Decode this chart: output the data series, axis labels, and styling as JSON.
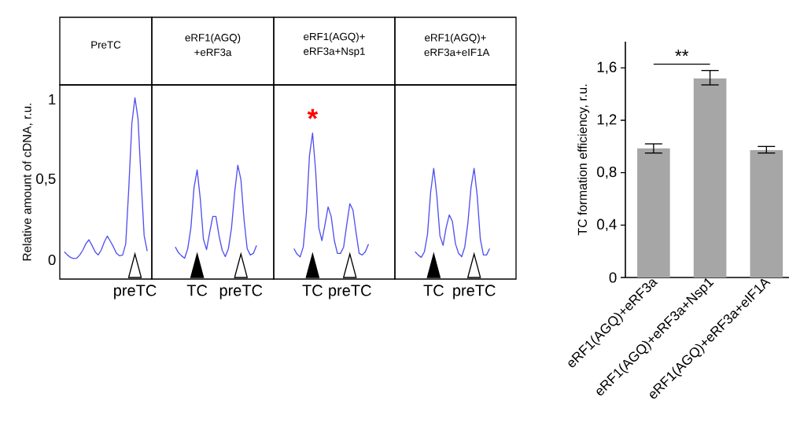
{
  "chart_data": [
    {
      "type": "line",
      "title": "PreTC",
      "ylabel": "Relative amount of cDNA, r.u.",
      "color": "#5050f0",
      "ylim": [
        -0.12,
        1.09
      ],
      "yticks": [
        {
          "value": 0,
          "label": "0"
        },
        {
          "value": 0.5,
          "label": "0,5"
        },
        {
          "value": 1,
          "label": "1"
        }
      ],
      "categories": [
        null,
        null,
        null,
        null,
        null,
        null,
        null,
        null,
        null,
        null,
        null,
        null,
        null,
        null,
        null,
        null,
        null,
        null,
        null,
        null,
        null,
        null,
        null,
        null,
        "preTC",
        null,
        null,
        null,
        null,
        null
      ],
      "values": [
        null,
        0.05,
        0.03,
        0.015,
        0.008,
        0.01,
        0.03,
        0.06,
        0.1,
        0.125,
        0.09,
        0.05,
        0.03,
        0.06,
        0.11,
        0.148,
        0.115,
        0.08,
        0.04,
        0.025,
        0.03,
        0.1,
        0.45,
        0.85,
        1.01,
        0.88,
        0.5,
        0.15,
        0.055,
        null
      ]
    },
    {
      "type": "line",
      "title": "eRF1(AGQ) +eRF3a",
      "color": "#5050f0",
      "ylim": [
        -0.12,
        1.09
      ],
      "tick_labels": "x",
      "categories": [
        null,
        null,
        null,
        null,
        null,
        null,
        null,
        null,
        null,
        null,
        null,
        null,
        null,
        null,
        "TC",
        null,
        null,
        null,
        null,
        null,
        null,
        null,
        null,
        null,
        null,
        null,
        null,
        null,
        "preTC",
        null,
        null,
        null,
        null,
        null,
        null,
        null,
        null,
        null,
        null
      ],
      "values": [
        null,
        null,
        null,
        null,
        null,
        null,
        null,
        0.08,
        0.045,
        0.025,
        0.01,
        0.07,
        0.2,
        0.45,
        0.56,
        0.38,
        0.13,
        0.063,
        0.17,
        0.27,
        0.27,
        0.15,
        0.06,
        0.02,
        0.07,
        0.2,
        0.42,
        0.59,
        0.5,
        0.25,
        0.07,
        0.03,
        0.04,
        0.09,
        null,
        null,
        null,
        null,
        null
      ]
    },
    {
      "type": "line",
      "title": "eRF1(AGQ)+ eRF3a+Nsp1",
      "color": "#5050f0",
      "ylim": [
        -0.12,
        1.09
      ],
      "tick_labels": "x",
      "annotations": [
        "*"
      ],
      "categories": [
        null,
        null,
        null,
        null,
        null,
        null,
        null,
        null,
        null,
        null,
        null,
        null,
        "TC",
        null,
        null,
        null,
        null,
        null,
        null,
        null,
        null,
        null,
        null,
        null,
        "preTC",
        null,
        null,
        null,
        null,
        null,
        null,
        null,
        null,
        null,
        null,
        null,
        null,
        null,
        null
      ],
      "values": [
        null,
        null,
        null,
        null,
        null,
        null,
        0.07,
        0.035,
        0.018,
        0.08,
        0.29,
        0.65,
        0.79,
        0.55,
        0.2,
        0.12,
        0.22,
        0.33,
        0.27,
        0.12,
        0.04,
        0.04,
        0.08,
        0.22,
        0.35,
        0.31,
        0.17,
        0.04,
        0.03,
        0.05,
        0.098,
        null,
        null,
        null,
        null,
        null,
        null,
        null,
        null
      ]
    },
    {
      "type": "line",
      "title": "eRF1(AGQ)+ eRF3a+eIF1A",
      "color": "#5050f0",
      "ylim": [
        -0.12,
        1.09
      ],
      "tick_labels": "x",
      "categories": [
        null,
        null,
        null,
        null,
        null,
        null,
        null,
        null,
        null,
        null,
        null,
        null,
        "TC",
        null,
        null,
        null,
        null,
        null,
        null,
        null,
        null,
        null,
        null,
        null,
        null,
        "preTC",
        null,
        null,
        null,
        null,
        null,
        null,
        null,
        null,
        null,
        null,
        null,
        null,
        null
      ],
      "values": [
        null,
        null,
        null,
        null,
        null,
        null,
        0.05,
        0.03,
        0.015,
        0.05,
        0.16,
        0.42,
        0.57,
        0.4,
        0.15,
        0.09,
        0.2,
        0.28,
        0.24,
        0.1,
        0.04,
        0.02,
        0.08,
        0.23,
        0.45,
        0.57,
        0.4,
        0.13,
        0.03,
        0.03,
        0.07,
        null,
        null,
        null,
        null,
        null,
        null,
        null,
        null
      ]
    },
    {
      "type": "bar",
      "ylabel": "TC formation efficiency, r.u.",
      "color": "#a6a6a6",
      "ylim": [
        0,
        1.8
      ],
      "yticks": [
        {
          "value": 0,
          "label": "0"
        },
        {
          "value": 0.4,
          "label": "0,4"
        },
        {
          "value": 0.8,
          "label": "0,8"
        },
        {
          "value": 1.2,
          "label": "1,2"
        },
        {
          "value": 1.6,
          "label": "1,6"
        }
      ],
      "categories": [
        "eRF1(AGQ)+eRF3a",
        "eRF1(AGQ)+eRF3a+Nsp1",
        "eRF1(AGQ)+eRF3a+eIF1A"
      ],
      "values": [
        0.985,
        1.52,
        0.972
      ],
      "errors": [
        [
          0.95,
          1.02
        ],
        [
          1.47,
          1.58
        ],
        [
          0.95,
          1.0
        ]
      ],
      "annotations": [
        "**"
      ]
    }
  ]
}
